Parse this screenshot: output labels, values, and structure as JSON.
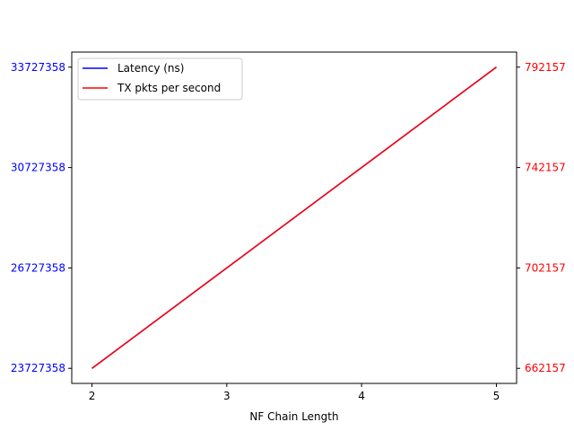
{
  "chart_data": {
    "type": "line",
    "title": "",
    "xlabel": "NF Chain Length",
    "ylabel_left": "",
    "ylabel_right": "",
    "x": [
      2,
      3,
      4,
      5
    ],
    "x_ticks": [
      "2",
      "3",
      "4",
      "5"
    ],
    "xlim": [
      1.85,
      5.15
    ],
    "y_left_ticks": [
      "23727358",
      "26727358",
      "30727358",
      "33727358"
    ],
    "y_left_tick_values": [
      0,
      1,
      2,
      3
    ],
    "y_right_ticks": [
      "662157",
      "702157",
      "742157",
      "792157"
    ],
    "y_right_tick_values": [
      0,
      1,
      2,
      3
    ],
    "ylim": [
      -0.15,
      3.15
    ],
    "series": [
      {
        "name": "Latency (ns)",
        "axis": "left",
        "color": "#0000ff",
        "values": [
          0,
          1,
          2,
          3
        ]
      },
      {
        "name": "TX pkts per second",
        "axis": "right",
        "color": "#ff0000",
        "values": [
          0,
          1,
          2,
          3
        ]
      }
    ],
    "left_tick_color": "#0000ff",
    "right_tick_color": "#ff0000",
    "legend": "top-left",
    "grid": false
  }
}
